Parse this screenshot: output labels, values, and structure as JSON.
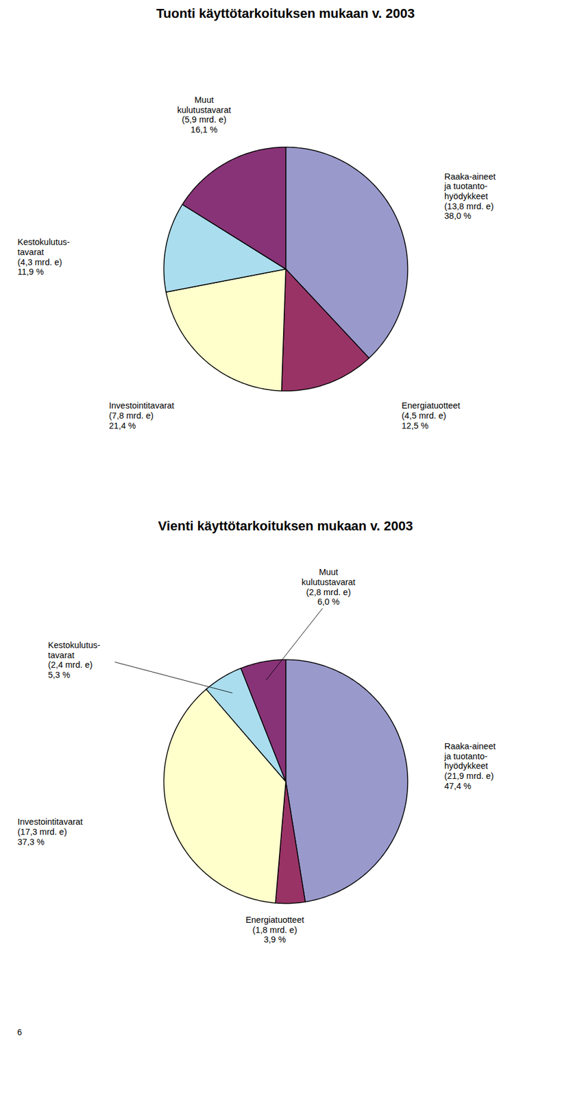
{
  "chart_data": [
    {
      "type": "pie",
      "title": "Tuonti käyttötarkoituksen mukaan v. 2003",
      "categories": [
        "Raaka-aineet\nja tuotanto-\nhyödykkeet\n(13,8 mrd. e)",
        "Energiatuotteet\n(4,5 mrd. e)",
        "Investointitavarat\n(7,8 mrd. e)",
        "Kestokulutus-\ntavarat\n(4,3 mrd. e)",
        "Muut\nkulutustavarat\n(5,9 mrd. e)"
      ],
      "values": [
        38.0,
        12.5,
        21.4,
        11.9,
        16.1
      ],
      "value_labels": [
        "38,0 %",
        "12,5 %",
        "21,4 %",
        "11,9 %",
        "16,1 %"
      ],
      "colors": [
        "#9999cc",
        "#993366",
        "#ffffcc",
        "#aaddee",
        "#883377"
      ],
      "data_labels": true
    },
    {
      "type": "pie",
      "title": "Vienti käyttötarkoituksen mukaan v. 2003",
      "categories": [
        "Raaka-aineet\nja tuotanto-\nhyödykkeet\n(21,9 mrd. e)",
        "Energiatuotteet\n(1,8 mrd. e)",
        "Investointitavarat\n(17,3 mrd. e)",
        "Kestokulutus-\ntavarat\n(2,4 mrd. e)",
        "Muut\nkulutustavarat\n(2,8 mrd. e)"
      ],
      "values": [
        47.4,
        3.9,
        37.3,
        5.3,
        6.0
      ],
      "value_labels": [
        "47,4 %",
        "3,9 %",
        "37,3 %",
        "5,3 %",
        "6,0 %"
      ],
      "colors": [
        "#9999cc",
        "#993366",
        "#ffffcc",
        "#aaddee",
        "#883377"
      ],
      "data_labels": true,
      "annotations": [
        "6"
      ]
    }
  ]
}
